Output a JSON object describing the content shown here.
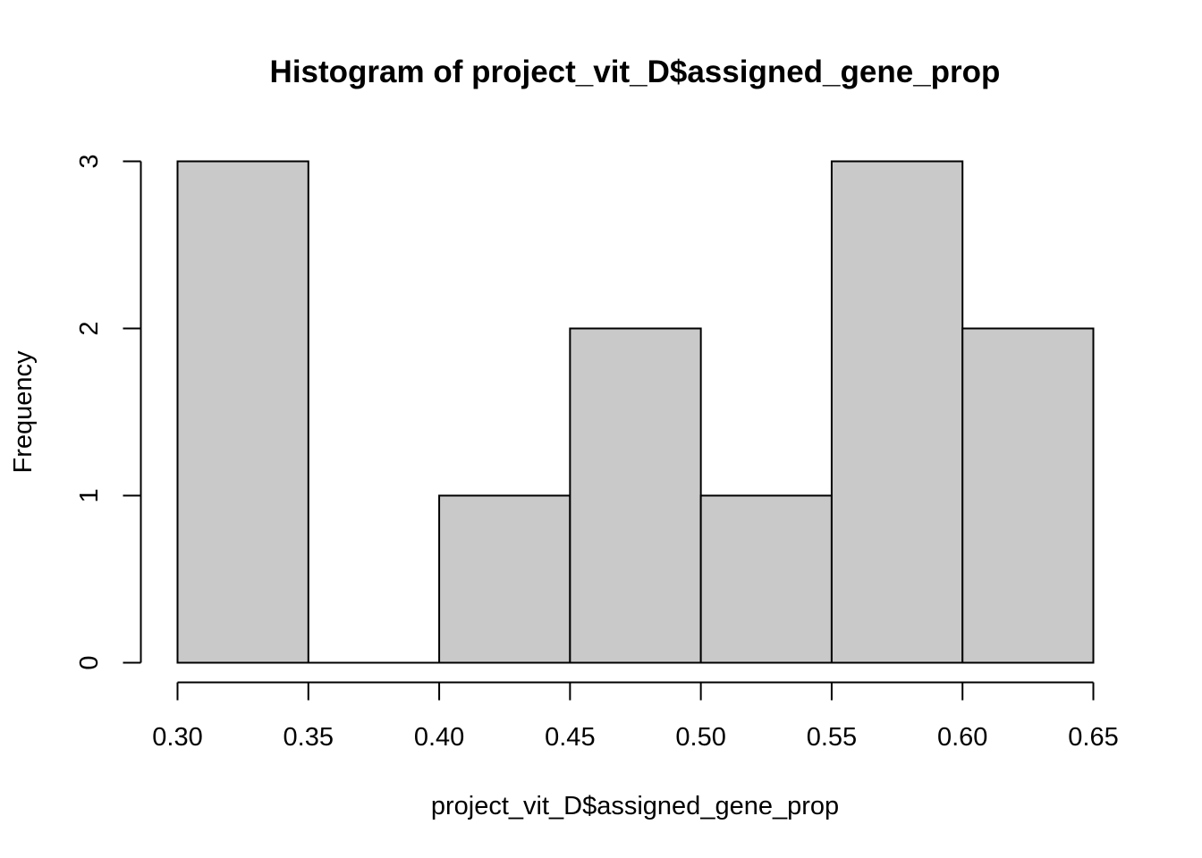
{
  "chart_data": {
    "type": "bar",
    "subtype": "histogram",
    "title": "Histogram of project_vit_D$assigned_gene_prop",
    "xlabel": "project_vit_D$assigned_gene_prop",
    "ylabel": "Frequency",
    "bins": [
      {
        "start": 0.3,
        "end": 0.35,
        "count": 3
      },
      {
        "start": 0.35,
        "end": 0.4,
        "count": 0
      },
      {
        "start": 0.4,
        "end": 0.45,
        "count": 1
      },
      {
        "start": 0.45,
        "end": 0.5,
        "count": 2
      },
      {
        "start": 0.5,
        "end": 0.55,
        "count": 1
      },
      {
        "start": 0.55,
        "end": 0.6,
        "count": 3
      },
      {
        "start": 0.6,
        "end": 0.65,
        "count": 2
      }
    ],
    "xlim": [
      0.3,
      0.65
    ],
    "ylim": [
      0,
      3
    ],
    "xticks": [
      "0.30",
      "0.35",
      "0.40",
      "0.45",
      "0.50",
      "0.55",
      "0.60",
      "0.65"
    ],
    "yticks": [
      "0",
      "1",
      "2",
      "3"
    ],
    "grid": false,
    "colors": {
      "bar_fill": "#c9c9c9",
      "bar_stroke": "#000000"
    }
  }
}
